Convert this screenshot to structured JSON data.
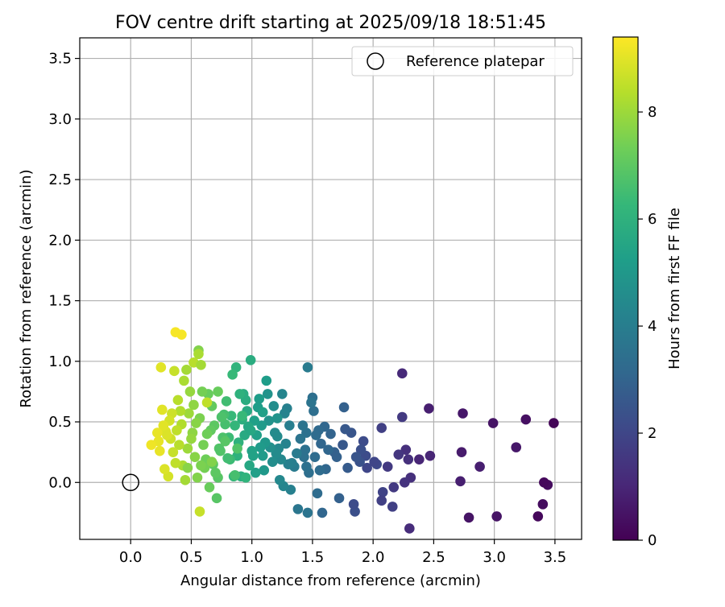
{
  "chart_data": {
    "type": "scatter",
    "title": "FOV centre drift starting at 2025/09/18 18:51:45",
    "xlabel": "Angular distance from reference (arcmin)",
    "ylabel": "Rotation from reference (arcmin)",
    "xlim": [
      -0.42,
      3.72
    ],
    "ylim": [
      -0.47,
      3.67
    ],
    "xticks": [
      "0.0",
      "0.5",
      "1.0",
      "1.5",
      "2.0",
      "2.5",
      "3.0",
      "3.5"
    ],
    "xtick_values": [
      0,
      0.5,
      1.0,
      1.5,
      2.0,
      2.5,
      3.0,
      3.5
    ],
    "yticks": [
      "0.0",
      "0.5",
      "1.0",
      "1.5",
      "2.0",
      "2.5",
      "3.0",
      "3.5"
    ],
    "ytick_values": [
      0,
      0.5,
      1.0,
      1.5,
      2.0,
      2.5,
      3.0,
      3.5
    ],
    "grid": true,
    "legend": {
      "placement": "top-right",
      "label": "Reference platepar"
    },
    "reference_point": {
      "x": 0,
      "y": 0,
      "label": "Reference platepar"
    },
    "colorbar": {
      "label": "Hours from first FF file",
      "range": [
        0,
        9.4
      ],
      "ticks": [
        "0",
        "2",
        "4",
        "6",
        "8"
      ],
      "tick_values": [
        0,
        2,
        4,
        6,
        8
      ],
      "colormap": "viridis"
    },
    "colormap_stops": [
      "#440154",
      "#482878",
      "#3e4989",
      "#31688e",
      "#26828e",
      "#1f9e89",
      "#35b779",
      "#6ece58",
      "#b5de2b",
      "#fde725"
    ],
    "series": [
      {
        "x": [
          3.49,
          3.44,
          3.41,
          3.4,
          3.36,
          3.26,
          3.18,
          3.02,
          2.99,
          2.88,
          2.79,
          2.74,
          2.73,
          2.72,
          2.47,
          2.46,
          2.38,
          2.31,
          2.3,
          2.29,
          2.27,
          2.26,
          2.24,
          2.24,
          2.21,
          2.17,
          2.16,
          2.12,
          2.08,
          2.07,
          2.07,
          2.03,
          2.01,
          1.95,
          1.94,
          1.92,
          1.9,
          1.89,
          1.86,
          1.85,
          1.84,
          1.82,
          1.79,
          1.77,
          1.76,
          1.75,
          1.72,
          1.7,
          1.68,
          1.65,
          1.63,
          1.61,
          1.6,
          1.58,
          1.57,
          1.56,
          1.55,
          1.54,
          1.53,
          1.52,
          1.51,
          1.5,
          1.49,
          1.47,
          1.46,
          1.45,
          1.45,
          1.44,
          1.43,
          1.42,
          1.4,
          1.38,
          1.37,
          1.35,
          1.33,
          1.32,
          1.31,
          1.3,
          1.29,
          1.28,
          1.27,
          1.26,
          1.25,
          1.24,
          1.23,
          1.22,
          1.21,
          1.2,
          1.19,
          1.18,
          1.17,
          1.15,
          1.14,
          1.13,
          1.12,
          1.11,
          1.1,
          1.09,
          1.08,
          1.07,
          1.06,
          1.05,
          1.04,
          1.03,
          1.02,
          1.01,
          1.0,
          0.99,
          0.98,
          0.97,
          0.96,
          0.95,
          0.94,
          0.93,
          0.92,
          0.91,
          0.9,
          0.89,
          0.88,
          0.87,
          0.86,
          0.85,
          0.84,
          0.83,
          0.82,
          0.81,
          0.8,
          0.79,
          0.78,
          0.77,
          0.76,
          0.75,
          0.74,
          0.73,
          0.72,
          0.71,
          0.7,
          0.69,
          0.68,
          0.67,
          0.66,
          0.65,
          0.64,
          0.63,
          0.62,
          0.61,
          0.6,
          0.59,
          0.58,
          0.57,
          0.56,
          0.55,
          0.54,
          0.53,
          0.52,
          0.51,
          0.5,
          0.49,
          0.48,
          0.47,
          0.46,
          0.45,
          0.44,
          0.43,
          0.42,
          0.41,
          0.4,
          0.39,
          0.38,
          0.37,
          0.36,
          0.35,
          0.34,
          0.33,
          0.32,
          0.31,
          0.3,
          0.29,
          0.28,
          0.27,
          0.26,
          0.25,
          0.24,
          0.23,
          0.22,
          0.17,
          0.37,
          0.42,
          0.56,
          0.57,
          0.63,
          0.88,
          0.92,
          0.99,
          1.46,
          0.47,
          0.52,
          0.58,
          0.67,
          0.72,
          0.78,
          0.86,
          0.95,
          1.09,
          1.21
        ],
        "y": [
          0.49,
          -0.02,
          0.0,
          -0.18,
          -0.28,
          0.52,
          0.29,
          -0.28,
          0.49,
          0.13,
          -0.29,
          0.57,
          0.25,
          0.01,
          0.22,
          0.61,
          0.19,
          0.04,
          -0.38,
          0.19,
          0.27,
          0.0,
          0.54,
          0.9,
          0.23,
          -0.04,
          -0.2,
          0.13,
          -0.08,
          -0.15,
          0.45,
          0.15,
          0.17,
          0.12,
          0.22,
          0.34,
          0.27,
          0.17,
          0.21,
          -0.24,
          -0.18,
          0.41,
          0.12,
          0.44,
          0.62,
          0.31,
          -0.13,
          0.21,
          0.25,
          0.4,
          0.27,
          0.11,
          0.46,
          -0.25,
          0.32,
          0.1,
          0.43,
          -0.09,
          0.39,
          0.21,
          0.59,
          0.7,
          0.66,
          0.08,
          0.95,
          0.41,
          0.13,
          0.27,
          0.21,
          0.47,
          0.36,
          -0.22,
          0.24,
          0.13,
          0.16,
          -0.06,
          0.47,
          0.15,
          0.61,
          0.32,
          0.57,
          -0.03,
          0.73,
          0.19,
          0.02,
          0.28,
          0.38,
          0.24,
          0.41,
          0.63,
          0.17,
          0.29,
          0.51,
          0.73,
          0.84,
          0.33,
          0.1,
          0.22,
          0.47,
          0.29,
          0.69,
          0.62,
          0.39,
          0.08,
          0.51,
          0.22,
          0.26,
          1.01,
          0.14,
          0.46,
          0.59,
          0.68,
          0.39,
          0.73,
          0.52,
          0.05,
          0.73,
          0.33,
          0.22,
          0.95,
          0.47,
          0.05,
          0.89,
          0.55,
          0.19,
          0.37,
          0.2,
          0.67,
          0.48,
          0.56,
          0.37,
          0.54,
          0.26,
          0.28,
          0.04,
          -0.13,
          0.08,
          0.47,
          0.15,
          0.63,
          0.43,
          -0.04,
          0.73,
          0.4,
          0.19,
          0.12,
          0.31,
          0.75,
          0.14,
          0.53,
          1.09,
          0.04,
          0.49,
          0.21,
          0.64,
          0.41,
          0.36,
          0.75,
          0.57,
          0.28,
          0.93,
          0.02,
          0.84,
          0.14,
          0.48,
          0.59,
          0.31,
          0.68,
          0.43,
          0.16,
          0.92,
          0.25,
          0.57,
          0.36,
          0.51,
          0.05,
          0.39,
          0.42,
          0.11,
          0.47,
          0.6,
          0.95,
          0.26,
          0.34,
          0.41,
          0.31,
          1.24,
          1.22,
          1.06,
          -0.24,
          0.66,
          0.28,
          0.55,
          0.43,
          -0.25,
          0.12,
          0.99,
          0.97,
          0.17,
          0.75,
          0.34,
          0.06,
          0.04,
          0.58,
          0.53
        ],
        "c": [
          0.1,
          0.3,
          0.2,
          0.3,
          0.2,
          0.4,
          0.6,
          0.5,
          0.5,
          0.8,
          0.5,
          0.6,
          0.7,
          0.8,
          1.0,
          0.8,
          1.0,
          1.3,
          1.2,
          1.3,
          1.3,
          1.4,
          1.6,
          1.1,
          1.5,
          1.6,
          1.8,
          1.6,
          1.9,
          1.8,
          1.8,
          2.1,
          2.0,
          2.0,
          2.2,
          2.2,
          2.3,
          2.4,
          2.5,
          2.3,
          2.2,
          2.5,
          2.7,
          2.6,
          2.9,
          2.6,
          2.9,
          2.9,
          2.9,
          3.0,
          3.1,
          3.1,
          3.1,
          3.1,
          3.1,
          3.3,
          3.2,
          3.3,
          3.3,
          3.3,
          3.4,
          3.4,
          3.6,
          3.4,
          3.9,
          3.5,
          3.5,
          3.5,
          3.5,
          3.6,
          3.6,
          3.7,
          3.9,
          3.9,
          4.0,
          4.1,
          4.0,
          4.1,
          4.1,
          4.2,
          4.2,
          4.3,
          4.3,
          4.4,
          4.4,
          4.4,
          4.5,
          4.5,
          4.5,
          4.6,
          4.6,
          4.7,
          4.8,
          4.8,
          5.2,
          5.0,
          5.0,
          5.1,
          5.1,
          5.1,
          5.2,
          5.2,
          5.3,
          5.3,
          5.3,
          5.4,
          5.4,
          5.8,
          5.6,
          5.6,
          5.7,
          5.8,
          5.7,
          5.8,
          5.9,
          5.9,
          6.0,
          6.0,
          6.0,
          6.1,
          6.2,
          6.2,
          6.3,
          6.3,
          6.4,
          6.4,
          6.5,
          6.5,
          6.6,
          6.6,
          6.7,
          6.7,
          6.8,
          6.8,
          6.9,
          6.9,
          7.0,
          7.0,
          7.0,
          7.1,
          7.1,
          7.2,
          7.2,
          7.3,
          7.3,
          7.4,
          7.4,
          7.4,
          7.5,
          7.5,
          7.6,
          7.6,
          7.7,
          7.7,
          7.8,
          7.8,
          7.9,
          7.9,
          8.0,
          8.0,
          8.1,
          8.1,
          8.2,
          8.2,
          8.3,
          8.3,
          8.4,
          8.4,
          8.5,
          8.5,
          8.6,
          8.6,
          8.7,
          8.7,
          8.8,
          8.8,
          8.9,
          8.9,
          8.9,
          9.0,
          9.0,
          9.0,
          9.1,
          9.1,
          9.1,
          9.2,
          9.3,
          9.3,
          8.2,
          8.6,
          8.5,
          6.8,
          6.3,
          5.6,
          3.6,
          7.7,
          8.4,
          8.1,
          7.6,
          7.2,
          6.9,
          6.6,
          6.1,
          5.3,
          4.8
        ]
      }
    ]
  }
}
